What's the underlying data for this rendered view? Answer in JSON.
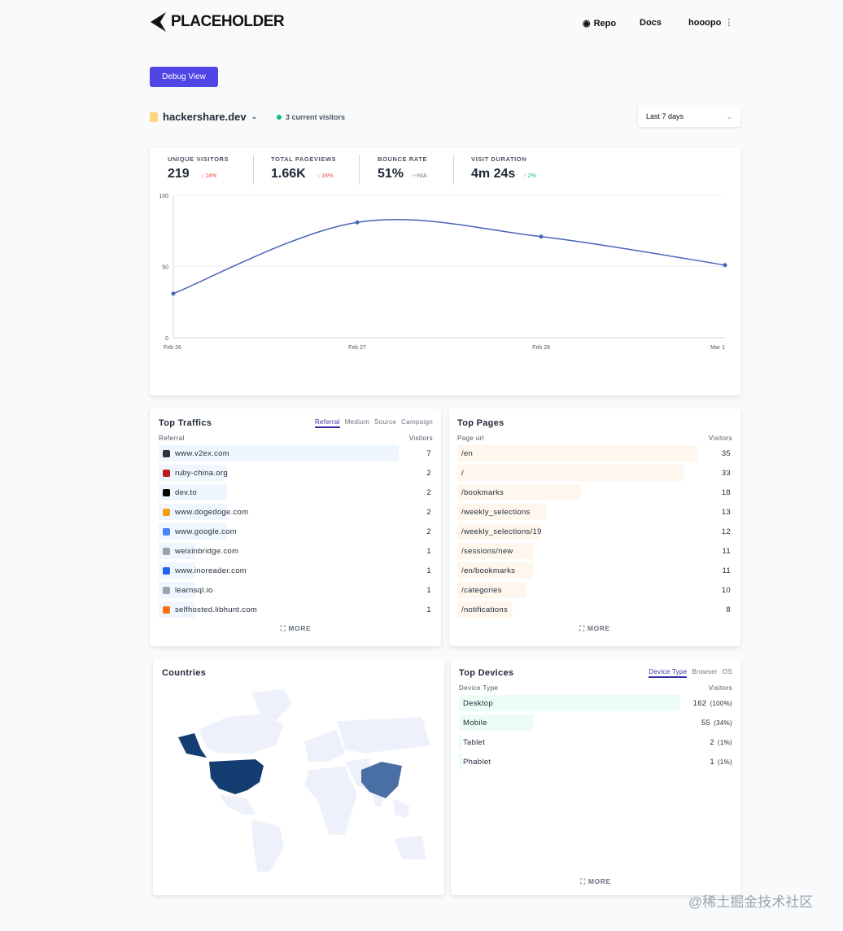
{
  "header": {
    "logo": "PLACEHOLDER",
    "repo": "Repo",
    "docs": "Docs",
    "user": "hooopo"
  },
  "debug_button": "Debug View",
  "site": {
    "name": "hackershare.dev",
    "current_visitors": "3 current visitors"
  },
  "period": "Last 7 days",
  "stats": [
    {
      "label": "UNIQUE VISITORS",
      "value": "219",
      "change": "↓ 14%",
      "trend": "down"
    },
    {
      "label": "TOTAL PAGEVIEWS",
      "value": "1.66K",
      "change": "↓ 16%",
      "trend": "down"
    },
    {
      "label": "BOUNCE RATE",
      "value": "51%",
      "change": "〰N/A",
      "trend": "flat"
    },
    {
      "label": "VISIT DURATION",
      "value": "4m 24s",
      "change": "↑ 2%",
      "trend": "up"
    }
  ],
  "chart_data": {
    "type": "line",
    "categories": [
      "Feb 26",
      "Feb 27",
      "Feb 28",
      "Mar 1"
    ],
    "values": [
      31,
      81,
      71,
      51
    ],
    "ylim": [
      0,
      100
    ],
    "yticks": [
      "0",
      "50",
      "100"
    ],
    "grid": true,
    "color": "#4763b8"
  },
  "traffic": {
    "title": "Top Traffics",
    "tabs": [
      "Referral",
      "Medium",
      "Source",
      "Campaign"
    ],
    "col1": "Referral",
    "col2": "Visitors",
    "more": "MORE",
    "rows": [
      {
        "name": "www.v2ex.com",
        "value": "7",
        "icon": "#333"
      },
      {
        "name": "ruby-china.org",
        "value": "2",
        "icon": "#b91c1c"
      },
      {
        "name": "dev.to",
        "value": "2",
        "icon": "#000"
      },
      {
        "name": "www.dogedoge.com",
        "value": "2",
        "icon": "#f59e0b"
      },
      {
        "name": "www.google.com",
        "value": "2",
        "icon": "#4285f4"
      },
      {
        "name": "weixinbridge.com",
        "value": "1",
        "icon": "#9ca3af"
      },
      {
        "name": "www.inoreader.com",
        "value": "1",
        "icon": "#2563eb"
      },
      {
        "name": "learnsql.io",
        "value": "1",
        "icon": "#9ca3af"
      },
      {
        "name": "selfhosted.libhunt.com",
        "value": "1",
        "icon": "#f97316"
      }
    ]
  },
  "pages": {
    "title": "Top Pages",
    "col1": "Page url",
    "col2": "Visitors",
    "more": "MORE",
    "rows": [
      {
        "name": "/en",
        "value": "35"
      },
      {
        "name": "/",
        "value": "33"
      },
      {
        "name": "/bookmarks",
        "value": "18"
      },
      {
        "name": "/weekly_selections",
        "value": "13"
      },
      {
        "name": "/weekly_selections/19",
        "value": "12"
      },
      {
        "name": "/sessions/new",
        "value": "11"
      },
      {
        "name": "/en/bookmarks",
        "value": "11"
      },
      {
        "name": "/categories",
        "value": "10"
      },
      {
        "name": "/notifications",
        "value": "8"
      }
    ]
  },
  "countries": {
    "title": "Countries"
  },
  "devices": {
    "title": "Top Devices",
    "tabs": [
      "Device Type",
      "Browser",
      "OS"
    ],
    "col1": "Device Type",
    "col2": "Visitors",
    "more": "MORE",
    "rows": [
      {
        "name": "Desktop",
        "value": "162",
        "pct": "(100%)",
        "share": 100
      },
      {
        "name": "Mobile",
        "value": "55",
        "pct": "(34%)",
        "share": 34
      },
      {
        "name": "Tablet",
        "value": "2",
        "pct": "(1%)",
        "share": 1
      },
      {
        "name": "Phablet",
        "value": "1",
        "pct": "(1%)",
        "share": 1
      }
    ]
  },
  "watermark": "@稀土掘金技术社区"
}
